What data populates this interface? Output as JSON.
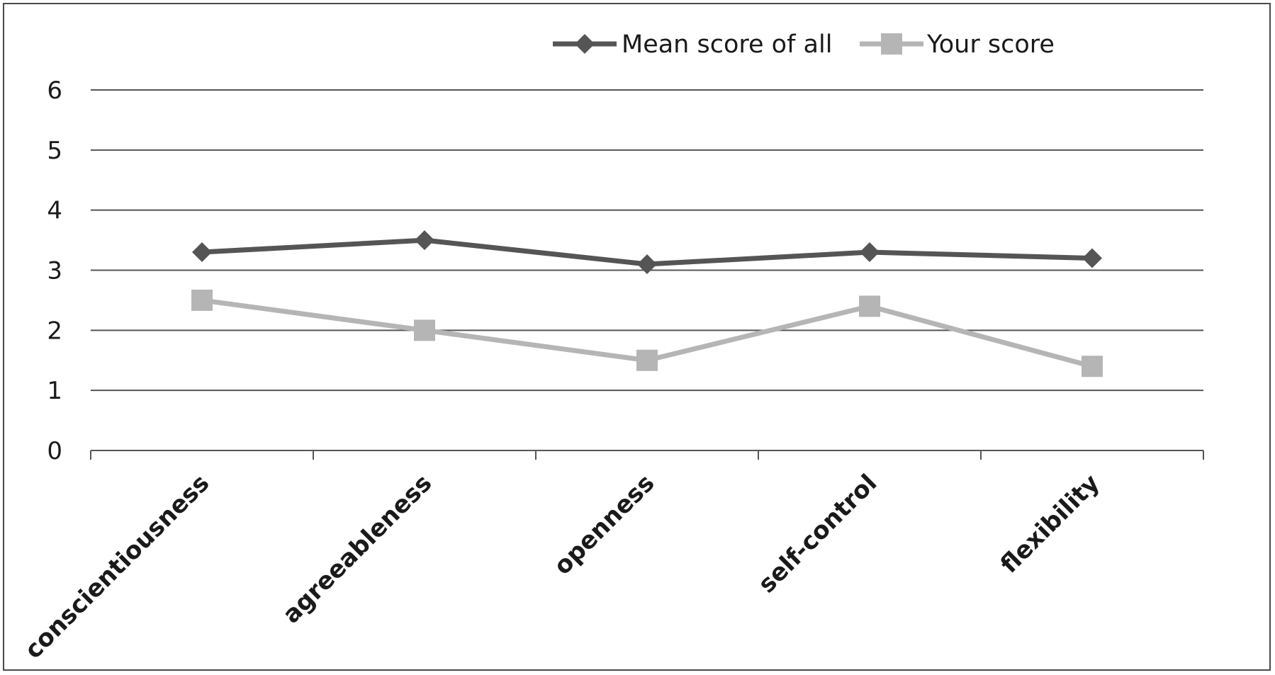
{
  "chart_data": {
    "type": "line",
    "categories": [
      "conscientiousness",
      "agreeableness",
      "openness",
      "self-control",
      "flexibility"
    ],
    "series": [
      {
        "name": "Mean score of all",
        "values": [
          3.3,
          3.5,
          3.1,
          3.3,
          3.2
        ],
        "color": "#555555",
        "marker": "diamond"
      },
      {
        "name": "Your score",
        "values": [
          2.5,
          2.0,
          1.5,
          2.4,
          1.4
        ],
        "color": "#b5b5b5",
        "marker": "square"
      }
    ],
    "y_ticks": [
      "0",
      "1",
      "2",
      "3",
      "4",
      "5",
      "6"
    ],
    "ylim": [
      0,
      6
    ],
    "grid": true,
    "legend_position": "top"
  },
  "colors": {
    "gridline": "#555555",
    "axis": "#555555",
    "border": "#4a4a4a"
  }
}
